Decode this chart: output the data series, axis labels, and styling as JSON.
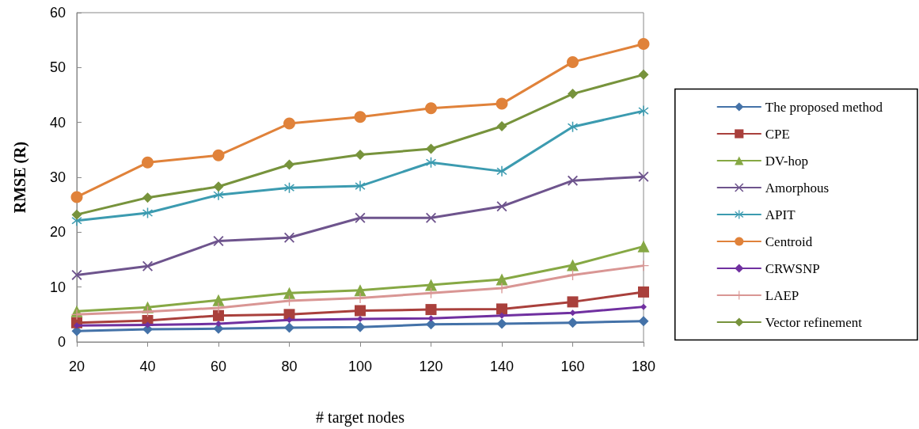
{
  "chart_data": {
    "type": "line",
    "xlabel": "# target nodes",
    "ylabel": "RMSE (R)",
    "categories": [
      "20",
      "40",
      "60",
      "80",
      "100",
      "120",
      "140",
      "160",
      "180"
    ],
    "ylim": [
      0,
      60
    ],
    "yticks": [
      0,
      10,
      20,
      30,
      40,
      50,
      60
    ],
    "grid": false,
    "legend": "right",
    "line_style": "solid",
    "series": [
      {
        "name": "The proposed method",
        "color": "#4472a8",
        "marker": "diamond",
        "values": [
          2.0,
          2.3,
          2.4,
          2.6,
          2.7,
          3.2,
          3.3,
          3.5,
          3.8
        ]
      },
      {
        "name": "CPE",
        "color": "#a9403c",
        "marker": "square",
        "values": [
          3.5,
          3.9,
          4.8,
          5.0,
          5.7,
          5.9,
          6.0,
          7.3,
          9.1
        ]
      },
      {
        "name": "DV-hop",
        "color": "#86a844",
        "marker": "triangle",
        "values": [
          5.6,
          6.3,
          7.6,
          8.9,
          9.4,
          10.4,
          11.4,
          14.0,
          17.4
        ]
      },
      {
        "name": "Amorphous",
        "color": "#6e548d",
        "marker": "cross",
        "values": [
          12.2,
          13.8,
          18.4,
          19.0,
          22.6,
          22.6,
          24.7,
          29.4,
          30.1
        ]
      },
      {
        "name": "APIT",
        "color": "#3c9bb0",
        "marker": "star",
        "values": [
          22.1,
          23.5,
          26.8,
          28.1,
          28.4,
          32.7,
          31.1,
          39.2,
          42.1
        ]
      },
      {
        "name": "Centroid",
        "color": "#e0823a",
        "marker": "circle",
        "values": [
          26.4,
          32.7,
          34.0,
          39.8,
          41.0,
          42.6,
          43.4,
          51.0,
          54.3
        ]
      },
      {
        "name": "CRWSNP",
        "color": "#7030a0",
        "marker": "diamond",
        "values": [
          3.0,
          3.1,
          3.3,
          4.0,
          4.2,
          4.3,
          4.8,
          5.3,
          6.4
        ]
      },
      {
        "name": "LAEP",
        "color": "#d99694",
        "marker": "plus",
        "values": [
          5.0,
          5.5,
          6.2,
          7.5,
          8.0,
          8.9,
          9.8,
          12.2,
          13.9
        ]
      },
      {
        "name": "Vector refinement",
        "color": "#77933c",
        "marker": "diamond",
        "values": [
          23.2,
          26.3,
          28.3,
          32.3,
          34.1,
          35.2,
          39.3,
          45.2,
          48.7
        ]
      }
    ]
  }
}
